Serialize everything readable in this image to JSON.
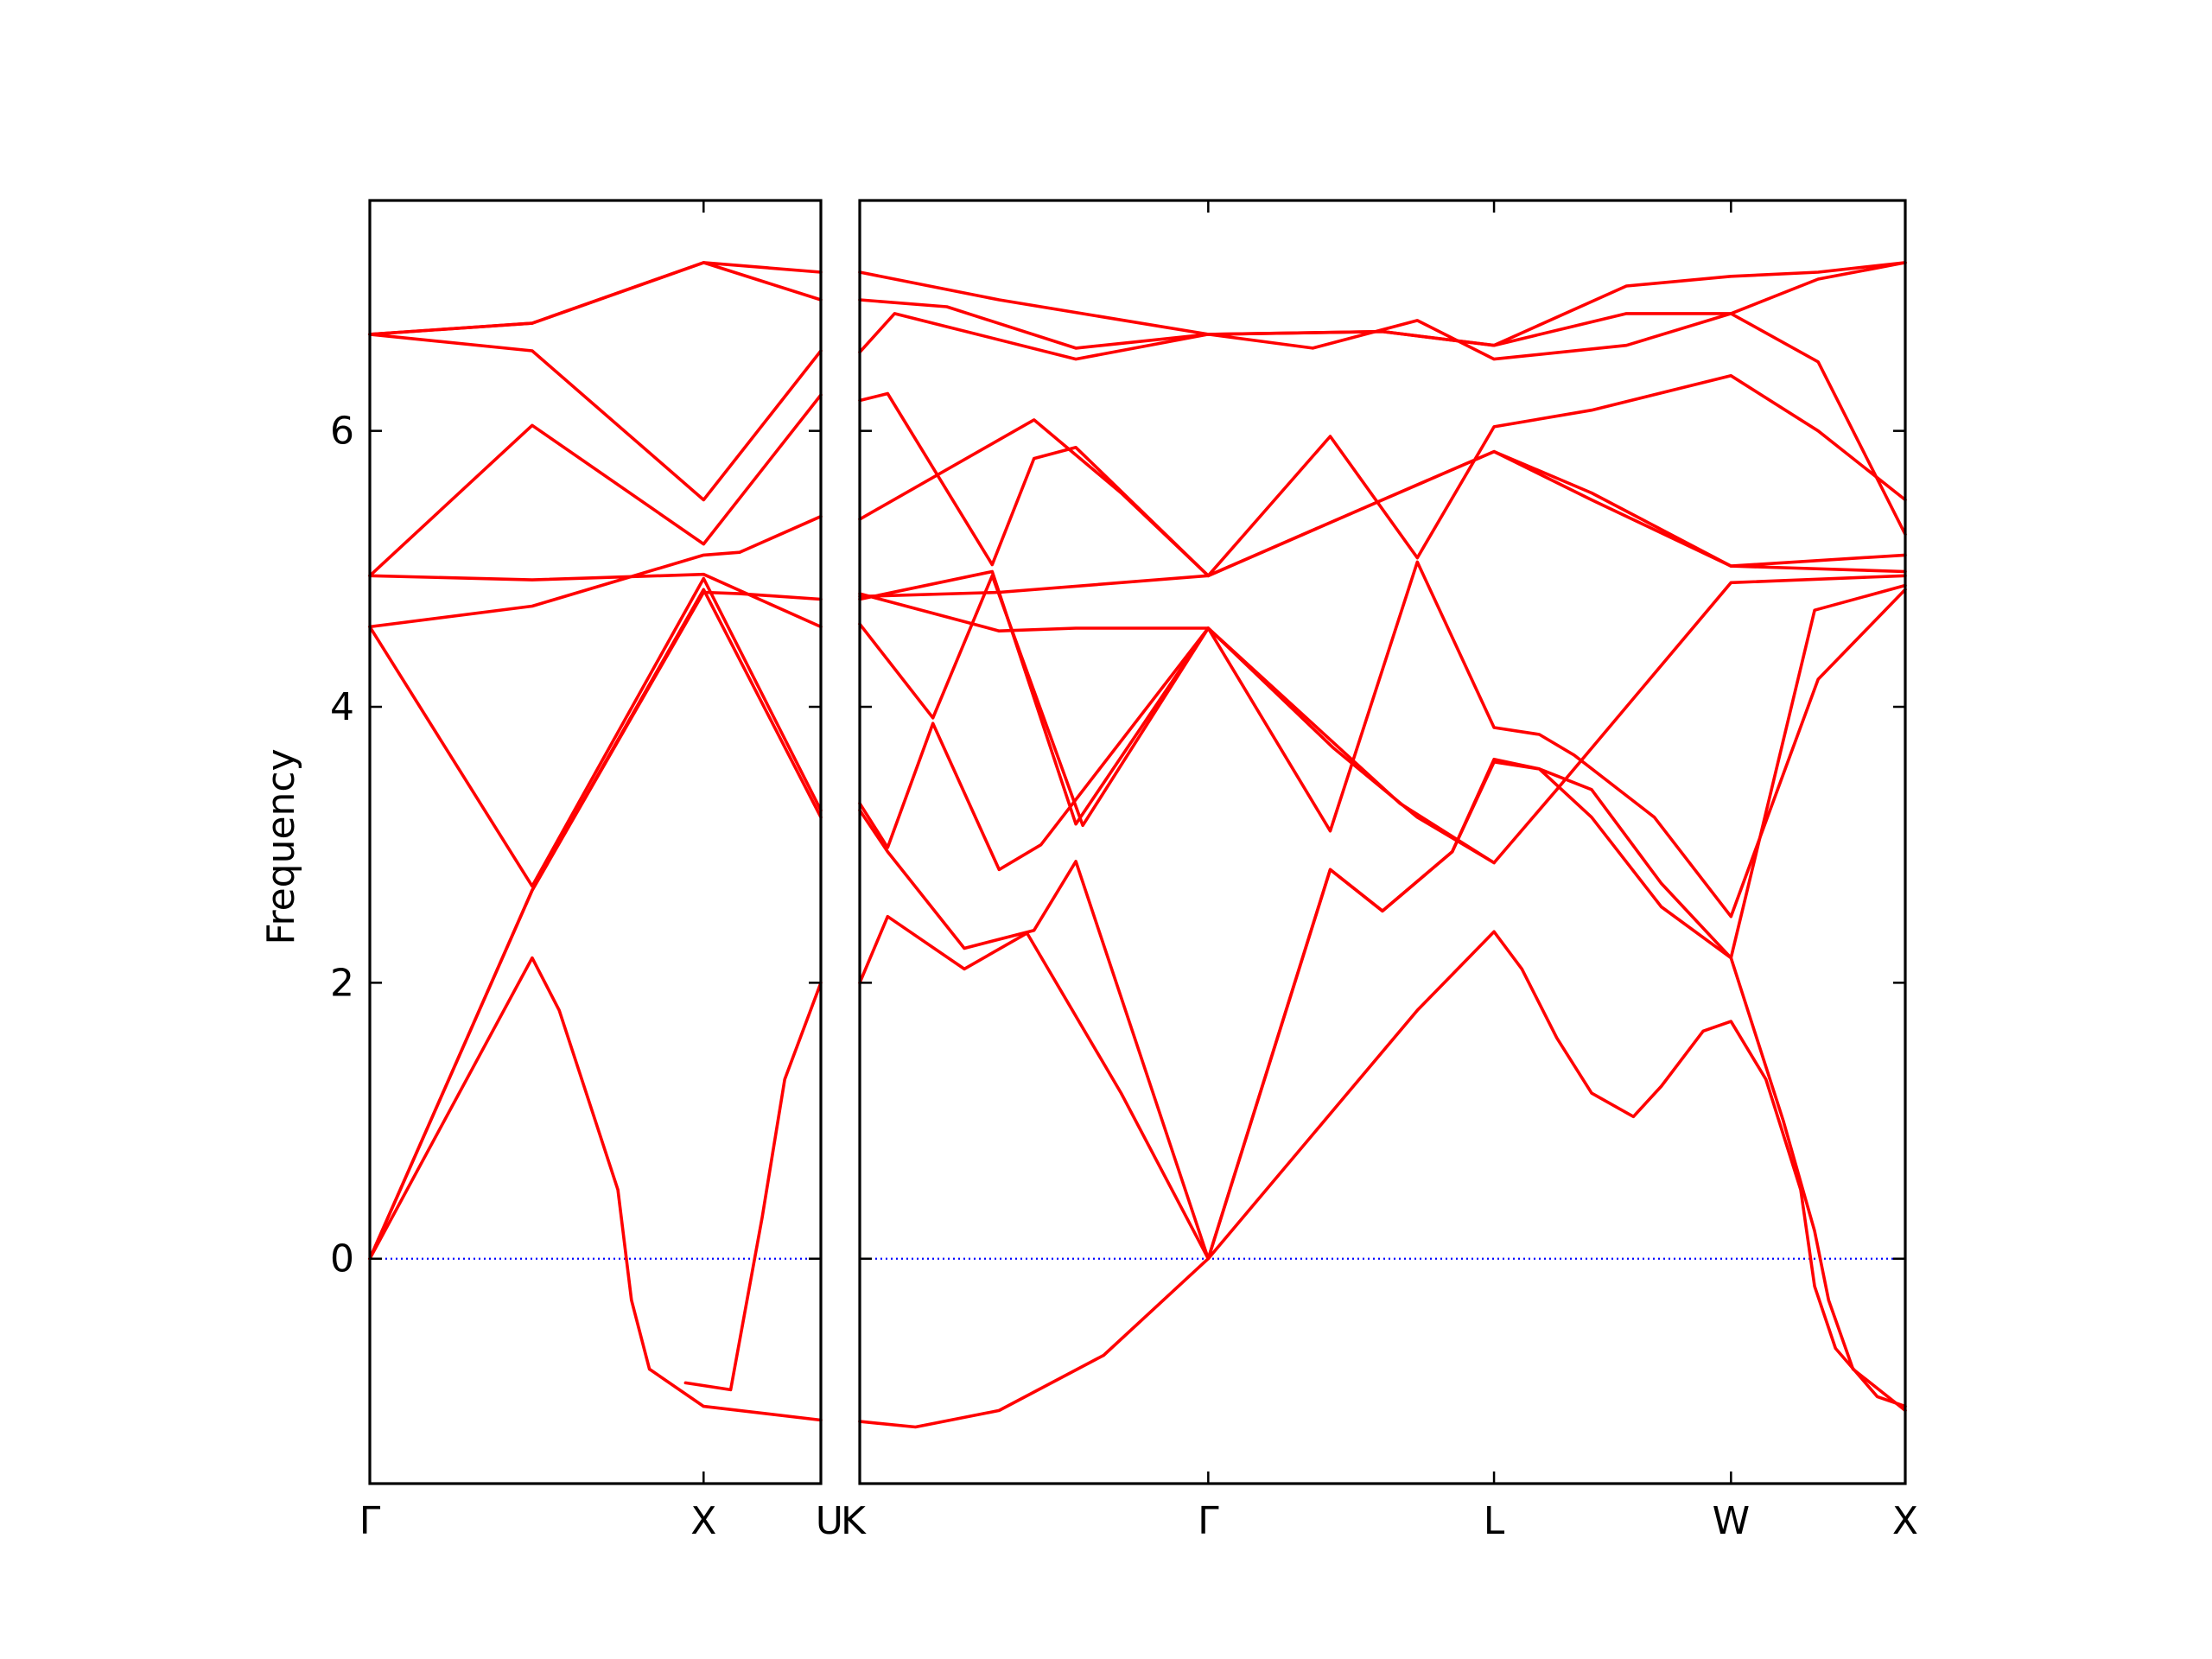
{
  "chart_data": {
    "type": "line",
    "title": "",
    "xlabel": "",
    "ylabel": "Frequency",
    "ylim": [
      -1.63,
      7.67
    ],
    "yticks": [
      0,
      2,
      4,
      6
    ],
    "reference_line": {
      "y": 0,
      "style": "dotted",
      "color": "#0000ff"
    },
    "line_color": "#ff0000",
    "grid": false,
    "panels": [
      {
        "name": "left",
        "xlim": [
          0,
          1.0
        ],
        "ticks": [
          {
            "x": 0.0,
            "label": "Γ"
          },
          {
            "x": 0.74,
            "label": "X"
          },
          {
            "x": 1.0,
            "label": "U"
          }
        ],
        "bands": [
          [
            [
              0,
              0
            ],
            [
              0.36,
              2.18
            ],
            [
              0.42,
              1.8
            ],
            [
              0.55,
              0.5
            ],
            [
              0.58,
              -0.3
            ],
            [
              0.62,
              -0.8
            ],
            [
              0.74,
              -1.07
            ],
            [
              1.0,
              -1.17
            ]
          ],
          [
            [
              0,
              0
            ],
            [
              0.36,
              2.67
            ],
            [
              0.74,
              4.83
            ],
            [
              0.82,
              4.82
            ],
            [
              1.0,
              4.78
            ]
          ],
          [
            [
              0,
              0
            ],
            [
              0.36,
              2.67
            ],
            [
              0.74,
              4.85
            ],
            [
              1.0,
              3.2
            ]
          ],
          [
            [
              0,
              4.58
            ],
            [
              0.36,
              2.7
            ],
            [
              0.74,
              4.93
            ],
            [
              1.0,
              3.25
            ]
          ],
          [
            [
              0,
              4.58
            ],
            [
              0.36,
              4.73
            ],
            [
              0.74,
              5.1
            ],
            [
              0.82,
              5.12
            ],
            [
              1.0,
              5.38
            ]
          ],
          [
            [
              0,
              4.95
            ],
            [
              0.36,
              4.92
            ],
            [
              0.74,
              4.96
            ],
            [
              1.0,
              4.58
            ]
          ],
          [
            [
              0,
              4.95
            ],
            [
              0.36,
              6.04
            ],
            [
              0.74,
              5.18
            ],
            [
              1.0,
              6.26
            ]
          ],
          [
            [
              0,
              6.7
            ],
            [
              0.36,
              6.58
            ],
            [
              0.74,
              5.5
            ],
            [
              1.0,
              6.58
            ]
          ],
          [
            [
              0,
              6.7
            ],
            [
              0.36,
              6.78
            ],
            [
              0.74,
              7.22
            ],
            [
              1.0,
              7.15
            ]
          ],
          [
            [
              0,
              6.7
            ],
            [
              0.36,
              6.78
            ],
            [
              0.74,
              7.22
            ],
            [
              1.0,
              6.95
            ]
          ],
          [
            [
              0.7,
              -0.9
            ],
            [
              0.8,
              -0.95
            ],
            [
              0.87,
              0.3
            ],
            [
              0.92,
              1.3
            ],
            [
              1.0,
              2.0
            ]
          ]
        ]
      },
      {
        "name": "right",
        "xlim": [
          0,
          3.0
        ],
        "ticks": [
          {
            "x": 0.0,
            "label": "K"
          },
          {
            "x": 1.0,
            "label": "Γ"
          },
          {
            "x": 1.82,
            "label": "L"
          },
          {
            "x": 2.5,
            "label": "W"
          },
          {
            "x": 3.0,
            "label": "X"
          }
        ],
        "bands": [
          [
            [
              0,
              -1.18
            ],
            [
              0.16,
              -1.22
            ],
            [
              0.4,
              -1.1
            ],
            [
              0.7,
              -0.7
            ],
            [
              1.0,
              0.0
            ],
            [
              1.3,
              0.9
            ],
            [
              1.6,
              1.8
            ],
            [
              1.82,
              2.37
            ],
            [
              1.9,
              2.1
            ],
            [
              2.0,
              1.6
            ],
            [
              2.1,
              1.2
            ],
            [
              2.22,
              1.03
            ],
            [
              2.3,
              1.25
            ],
            [
              2.42,
              1.65
            ],
            [
              2.5,
              1.72
            ],
            [
              2.6,
              1.3
            ],
            [
              2.7,
              0.5
            ],
            [
              2.74,
              -0.2
            ],
            [
              2.8,
              -0.65
            ],
            [
              2.92,
              -1.0
            ],
            [
              3.0,
              -1.07
            ]
          ],
          [
            [
              0,
              2.0
            ],
            [
              0.08,
              2.48
            ],
            [
              0.3,
              2.1
            ],
            [
              0.48,
              2.36
            ],
            [
              0.75,
              1.2
            ],
            [
              1.0,
              0.0
            ],
            [
              1.35,
              2.82
            ],
            [
              1.5,
              2.52
            ],
            [
              1.7,
              2.95
            ],
            [
              1.82,
              3.62
            ],
            [
              1.95,
              3.55
            ],
            [
              2.1,
              3.2
            ],
            [
              2.3,
              2.55
            ],
            [
              2.5,
              2.18
            ],
            [
              2.65,
              1.0
            ],
            [
              2.74,
              0.2
            ],
            [
              2.78,
              -0.3
            ],
            [
              2.85,
              -0.8
            ],
            [
              3.0,
              -1.1
            ]
          ],
          [
            [
              0,
              3.25
            ],
            [
              0.08,
              2.95
            ],
            [
              0.3,
              2.25
            ],
            [
              0.5,
              2.38
            ],
            [
              0.62,
              2.88
            ],
            [
              1.0,
              0.0
            ],
            [
              1.35,
              2.82
            ],
            [
              1.5,
              2.52
            ],
            [
              1.7,
              2.95
            ],
            [
              1.82,
              3.6
            ],
            [
              1.95,
              3.55
            ],
            [
              2.1,
              3.4
            ],
            [
              2.3,
              2.72
            ],
            [
              2.5,
              2.18
            ],
            [
              2.74,
              4.7
            ],
            [
              3.0,
              4.88
            ]
          ],
          [
            [
              0,
              3.3
            ],
            [
              0.08,
              2.98
            ],
            [
              0.21,
              3.88
            ],
            [
              0.4,
              2.82
            ],
            [
              0.52,
              3.0
            ],
            [
              1.0,
              4.57
            ],
            [
              1.36,
              3.7
            ],
            [
              1.6,
              3.2
            ],
            [
              1.82,
              2.87
            ],
            [
              2.0,
              3.4
            ],
            [
              2.5,
              4.9
            ],
            [
              3.0,
              4.95
            ]
          ],
          [
            [
              0,
              4.6
            ],
            [
              0.21,
              3.92
            ],
            [
              0.38,
              4.95
            ],
            [
              0.64,
              3.14
            ],
            [
              1.0,
              4.57
            ],
            [
              1.35,
              3.1
            ],
            [
              1.6,
              5.05
            ],
            [
              1.82,
              3.85
            ],
            [
              1.95,
              3.8
            ],
            [
              2.05,
              3.65
            ],
            [
              2.28,
              3.2
            ],
            [
              2.5,
              2.48
            ],
            [
              2.75,
              4.2
            ],
            [
              3.0,
              4.85
            ]
          ],
          [
            [
              0,
              4.78
            ],
            [
              0.38,
              4.98
            ],
            [
              0.62,
              3.15
            ],
            [
              1.0,
              4.57
            ],
            [
              1.55,
              3.3
            ],
            [
              1.82,
              2.87
            ]
          ],
          [
            [
              0,
              4.82
            ],
            [
              0.4,
              4.55
            ],
            [
              0.62,
              4.57
            ],
            [
              1.0,
              4.57
            ]
          ],
          [
            [
              0,
              4.8
            ],
            [
              0.4,
              4.83
            ],
            [
              1.0,
              4.95
            ],
            [
              1.5,
              5.5
            ],
            [
              1.82,
              5.85
            ],
            [
              2.1,
              5.55
            ],
            [
              2.5,
              5.02
            ],
            [
              3.0,
              5.1
            ]
          ],
          [
            [
              0,
              5.36
            ],
            [
              0.5,
              6.08
            ],
            [
              0.75,
              5.55
            ],
            [
              1.0,
              4.95
            ],
            [
              1.35,
              5.96
            ],
            [
              1.6,
              5.08
            ],
            [
              1.82,
              6.03
            ],
            [
              2.1,
              6.15
            ],
            [
              2.5,
              6.4
            ],
            [
              2.75,
              6.0
            ],
            [
              3.0,
              5.5
            ]
          ],
          [
            [
              0,
              6.22
            ],
            [
              0.08,
              6.27
            ],
            [
              0.38,
              5.03
            ],
            [
              0.5,
              5.8
            ],
            [
              0.62,
              5.88
            ],
            [
              1.0,
              4.95
            ],
            [
              1.5,
              5.5
            ],
            [
              1.82,
              5.85
            ],
            [
              2.1,
              5.5
            ],
            [
              2.5,
              5.02
            ],
            [
              3.0,
              4.98
            ]
          ],
          [
            [
              0,
              6.57
            ],
            [
              0.1,
              6.85
            ],
            [
              0.62,
              6.52
            ],
            [
              1.0,
              6.7
            ],
            [
              1.3,
              6.6
            ],
            [
              1.6,
              6.8
            ],
            [
              1.82,
              6.52
            ],
            [
              2.2,
              6.62
            ],
            [
              2.5,
              6.85
            ],
            [
              2.75,
              6.5
            ],
            [
              3.0,
              5.25
            ]
          ],
          [
            [
              0,
              6.95
            ],
            [
              0.25,
              6.9
            ],
            [
              0.62,
              6.6
            ],
            [
              1.0,
              6.7
            ],
            [
              1.5,
              6.72
            ],
            [
              1.82,
              6.62
            ],
            [
              2.2,
              6.85
            ],
            [
              2.5,
              6.85
            ],
            [
              2.75,
              7.1
            ],
            [
              3.0,
              7.22
            ]
          ],
          [
            [
              0,
              7.15
            ],
            [
              0.4,
              6.95
            ],
            [
              1.0,
              6.7
            ],
            [
              1.5,
              6.72
            ],
            [
              1.82,
              6.62
            ],
            [
              2.2,
              7.05
            ],
            [
              2.5,
              7.12
            ],
            [
              2.75,
              7.15
            ],
            [
              3.0,
              7.22
            ]
          ]
        ]
      }
    ]
  }
}
